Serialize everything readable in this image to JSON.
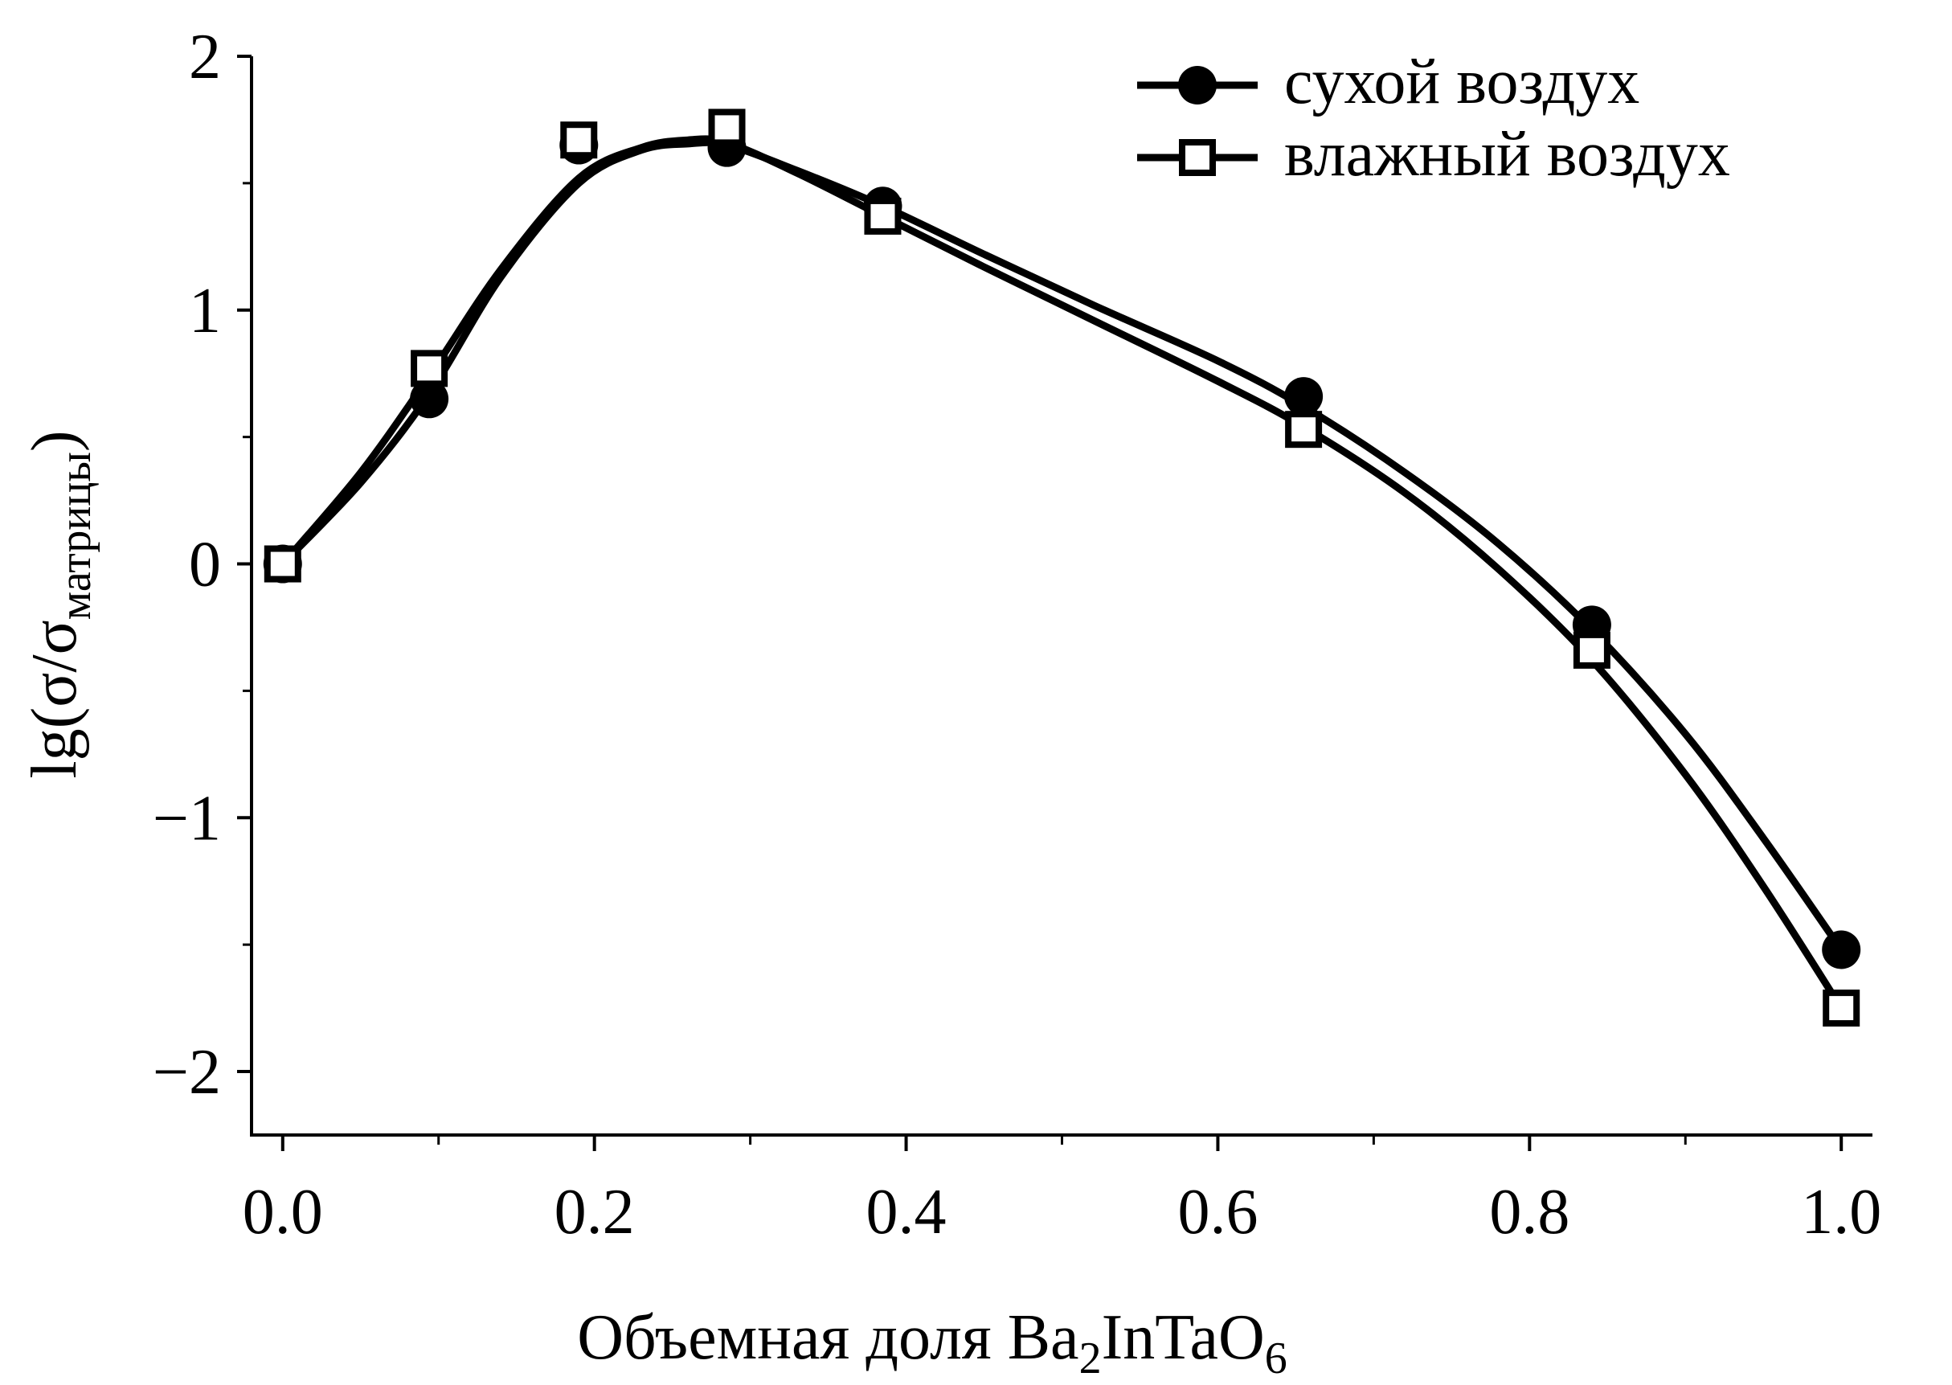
{
  "chart_data": {
    "type": "line",
    "title": "",
    "xlabel": {
      "main": "Объемная доля Ba",
      "sub1": "2",
      "mid": "InTaO",
      "sub2": "6"
    },
    "ylabel": {
      "main": "lg(σ/σ",
      "sub": "матрицы",
      "close": ")"
    },
    "xlim": [
      -0.02,
      1.02
    ],
    "ylim": [
      -2.25,
      2.0
    ],
    "x_ticks": [
      {
        "value": 0.0,
        "label": "0.0"
      },
      {
        "value": 0.2,
        "label": "0.2"
      },
      {
        "value": 0.4,
        "label": "0.4"
      },
      {
        "value": 0.6,
        "label": "0.6"
      },
      {
        "value": 0.8,
        "label": "0.8"
      },
      {
        "value": 1.0,
        "label": "1.0"
      }
    ],
    "x_minor_ticks": [
      0.1,
      0.3,
      0.5,
      0.7,
      0.9
    ],
    "y_ticks": [
      {
        "value": 2,
        "label": "2"
      },
      {
        "value": 1,
        "label": "1"
      },
      {
        "value": 0,
        "label": "0"
      },
      {
        "value": -1,
        "label": "−1"
      },
      {
        "value": -2,
        "label": "−2"
      }
    ],
    "y_minor_ticks": [
      1.5,
      0.5,
      -0.5,
      -1.5
    ],
    "grid": false,
    "legend_position": "top-right",
    "series": [
      {
        "name": "сухой воздух",
        "marker": "filled-circle",
        "color": "#000000",
        "x": [
          0.0,
          0.094,
          0.19,
          0.285,
          0.385,
          0.655,
          0.84,
          1.0
        ],
        "y": [
          0.0,
          0.65,
          1.65,
          1.64,
          1.41,
          0.66,
          -0.24,
          -1.52
        ],
        "curve_x": [
          0.0,
          0.05,
          0.094,
          0.14,
          0.19,
          0.23,
          0.26,
          0.285,
          0.33,
          0.385,
          0.45,
          0.52,
          0.6,
          0.655,
          0.72,
          0.78,
          0.84,
          0.9,
          0.95,
          1.0
        ],
        "curve_y": [
          0.0,
          0.32,
          0.67,
          1.13,
          1.5,
          1.63,
          1.655,
          1.65,
          1.55,
          1.41,
          1.22,
          1.02,
          0.8,
          0.62,
          0.36,
          0.08,
          -0.26,
          -0.67,
          -1.08,
          -1.52
        ]
      },
      {
        "name": "влажный воздух",
        "marker": "open-square",
        "color": "#000000",
        "x": [
          0.0,
          0.094,
          0.19,
          0.285,
          0.385,
          0.655,
          0.84,
          1.0
        ],
        "y": [
          0.0,
          0.77,
          1.67,
          1.72,
          1.37,
          0.53,
          -0.34,
          -1.75
        ],
        "curve_x": [
          0.0,
          0.05,
          0.094,
          0.14,
          0.19,
          0.23,
          0.26,
          0.285,
          0.33,
          0.385,
          0.45,
          0.52,
          0.6,
          0.655,
          0.72,
          0.78,
          0.84,
          0.9,
          0.95,
          1.0
        ],
        "curve_y": [
          0.0,
          0.36,
          0.74,
          1.16,
          1.52,
          1.64,
          1.67,
          1.66,
          1.54,
          1.37,
          1.17,
          0.96,
          0.72,
          0.54,
          0.28,
          -0.02,
          -0.38,
          -0.83,
          -1.27,
          -1.75
        ]
      }
    ]
  }
}
